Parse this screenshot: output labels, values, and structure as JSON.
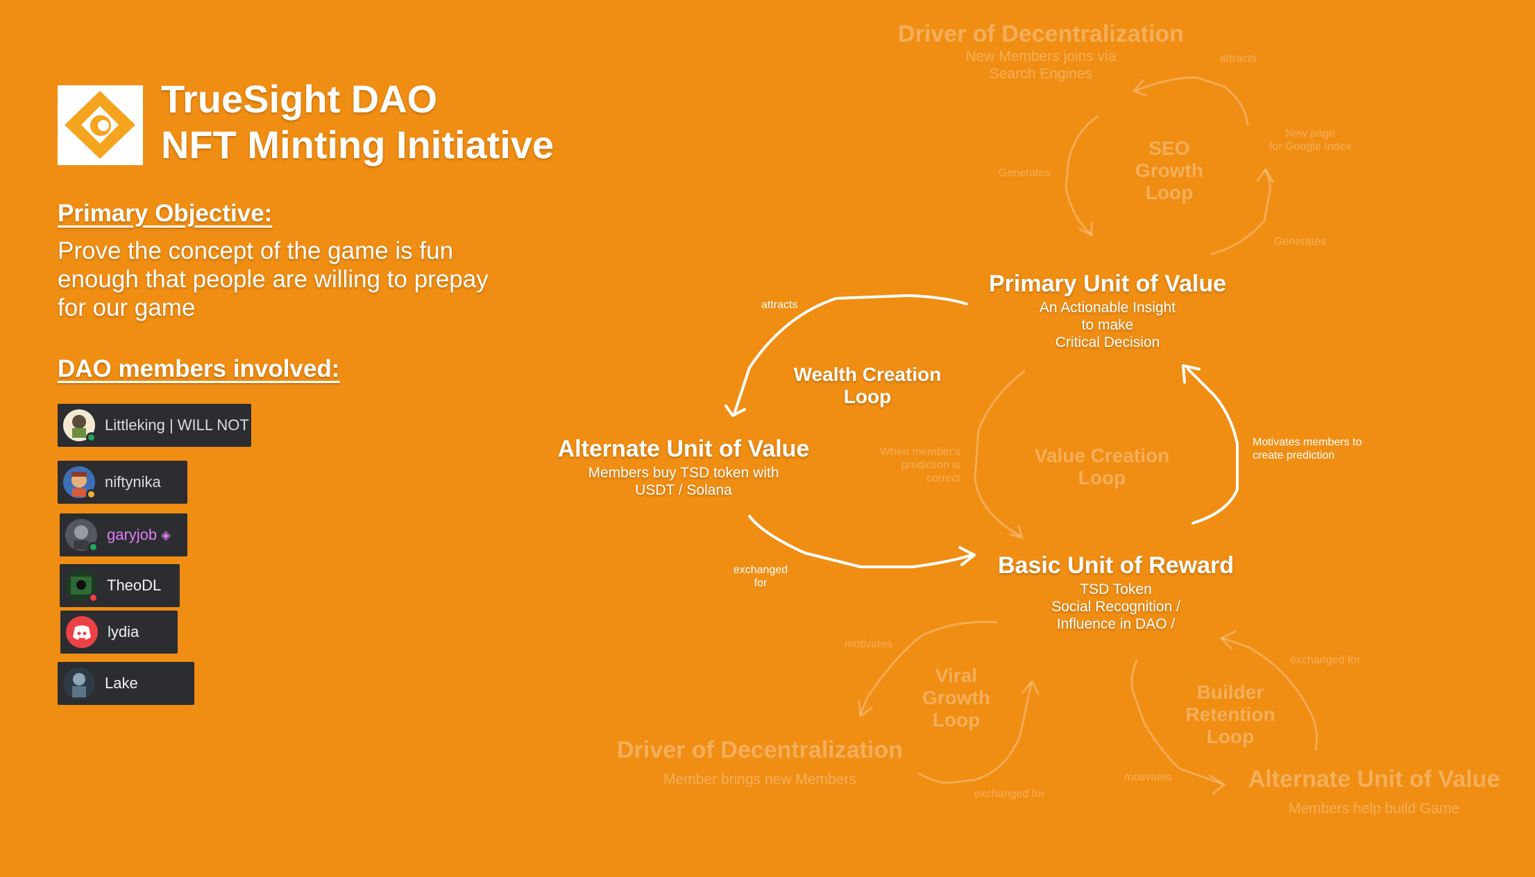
{
  "header": {
    "title_line1": "TrueSight DAO",
    "title_line2": "NFT Minting Initiative"
  },
  "objective": {
    "heading": "Primary Objective:",
    "text": "Prove the concept of the game is fun enough that people are willing to prepay for our game"
  },
  "members": {
    "heading": "DAO members involved:",
    "list": [
      {
        "name": "Littleking | WILL NOT",
        "status": "online"
      },
      {
        "name": "niftynika",
        "status": "idle"
      },
      {
        "name": "garyjob",
        "status": "online"
      },
      {
        "name": "TheoDL",
        "status": "dnd"
      },
      {
        "name": "lydia",
        "status": "none"
      },
      {
        "name": "Lake",
        "status": "none"
      }
    ]
  },
  "diagram": {
    "primary": {
      "title": "Primary Unit of Value",
      "sub1": "An Actionable Insight",
      "sub2": "to make",
      "sub3": "Critical Decision"
    },
    "alternate": {
      "title": "Alternate Unit of Value",
      "sub1": "Members buy TSD token with",
      "sub2": "USDT / Solana"
    },
    "basic": {
      "title": "Basic Unit of Reward",
      "sub1": "TSD Token",
      "sub2": "Social Recognition /",
      "sub3": "Influence in DAO /"
    },
    "wealth_loop": {
      "line1": "Wealth Creation",
      "line2": "Loop"
    },
    "value_loop": {
      "line1": "Value Creation",
      "line2": "Loop"
    },
    "labels": {
      "attracts": "attracts",
      "exchanged_for": {
        "line1": "exchanged",
        "line2": "for"
      },
      "motivates": {
        "line1": "Motivates members to",
        "line2": "create prediction"
      },
      "when_correct": {
        "line1": "When member's",
        "line2": "prediction is",
        "line3": "correct"
      }
    },
    "seo": {
      "driver_title": "Driver of Decentralization",
      "driver_sub1": "New Members joins via",
      "driver_sub2": "Search Engines",
      "loop": {
        "line1": "SEO",
        "line2": "Growth",
        "line3": "Loop"
      },
      "attracts": "attracts",
      "new_page": {
        "line1": "New page",
        "line2": "for Google Index"
      },
      "generates_left": "Generates",
      "generates_right": "Generates"
    },
    "viral": {
      "driver_title": "Driver of Decentralization",
      "driver_sub": "Member brings new Members",
      "loop": {
        "line1": "Viral",
        "line2": "Growth",
        "line3": "Loop"
      },
      "motivates": "motivates",
      "exchanged_for": "exchanged for"
    },
    "builder": {
      "alt_title": "Alternate Unit of Value",
      "alt_sub": "Members help build Game",
      "loop": {
        "line1": "Builder",
        "line2": "Retention",
        "line3": "Loop"
      },
      "exchanged_for": "exchanged for",
      "motivates": "motivates"
    }
  },
  "colors": {
    "background": "#F08D13",
    "member_card": "#2B2D31",
    "member_text": "#DBDEE1",
    "garyjob_name": "#E07DF5"
  }
}
